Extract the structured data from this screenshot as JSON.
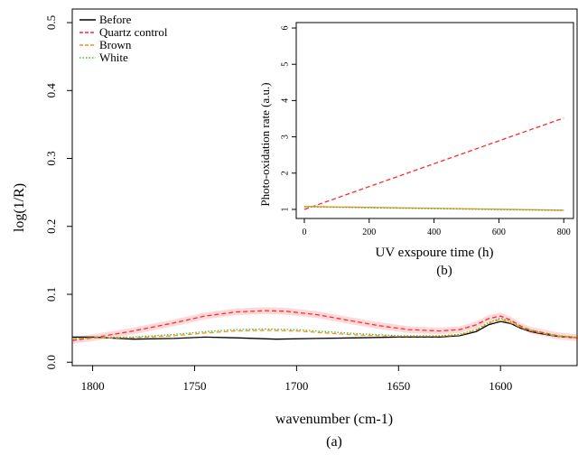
{
  "chart_data": [
    {
      "panel_label": "(a)",
      "type": "line",
      "xlabel": "wavenumber (cm-1)",
      "ylabel": "log(1/R)",
      "xlim": [
        1810,
        1562
      ],
      "ylim": [
        -0.005,
        0.52
      ],
      "x_reversed": true,
      "x_ticks": [
        1800,
        1750,
        1700,
        1650,
        1600
      ],
      "y_ticks": [
        0.0,
        0.1,
        0.2,
        0.3,
        0.4,
        0.5
      ],
      "y_tick_labels": [
        "0.0",
        "0.1",
        "0.2",
        "0.3",
        "0.4",
        "0.5"
      ],
      "grid": false,
      "legend_position": "top-left",
      "series": [
        {
          "name": "Before",
          "color": "#000000",
          "dash": "solid",
          "x": [
            1810,
            1800,
            1780,
            1760,
            1745,
            1730,
            1710,
            1690,
            1670,
            1650,
            1630,
            1620,
            1612,
            1606,
            1600,
            1595,
            1590,
            1585,
            1580,
            1572,
            1562
          ],
          "y": [
            0.037,
            0.037,
            0.034,
            0.035,
            0.037,
            0.036,
            0.034,
            0.035,
            0.036,
            0.037,
            0.037,
            0.039,
            0.045,
            0.055,
            0.06,
            0.057,
            0.05,
            0.045,
            0.042,
            0.038,
            0.036
          ]
        },
        {
          "name": "Quartz control",
          "color": "#ff2a2a",
          "dash": "dashed",
          "band": 0.005,
          "x": [
            1810,
            1800,
            1780,
            1760,
            1745,
            1730,
            1715,
            1705,
            1690,
            1675,
            1660,
            1645,
            1630,
            1620,
            1612,
            1606,
            1600,
            1595,
            1590,
            1585,
            1580,
            1572,
            1562
          ],
          "y": [
            0.032,
            0.036,
            0.046,
            0.058,
            0.068,
            0.074,
            0.076,
            0.075,
            0.07,
            0.062,
            0.054,
            0.048,
            0.046,
            0.048,
            0.055,
            0.064,
            0.068,
            0.062,
            0.053,
            0.047,
            0.044,
            0.039,
            0.036
          ]
        },
        {
          "name": "Brown",
          "color": "#ff8c1a",
          "dash": "dashed",
          "x": [
            1810,
            1800,
            1780,
            1760,
            1745,
            1730,
            1715,
            1700,
            1685,
            1670,
            1650,
            1630,
            1620,
            1612,
            1606,
            1600,
            1595,
            1590,
            1585,
            1580,
            1572,
            1562
          ],
          "y": [
            0.035,
            0.036,
            0.036,
            0.039,
            0.043,
            0.046,
            0.047,
            0.046,
            0.043,
            0.04,
            0.038,
            0.038,
            0.04,
            0.047,
            0.057,
            0.063,
            0.058,
            0.051,
            0.046,
            0.043,
            0.038,
            0.036
          ]
        },
        {
          "name": "White",
          "color": "#3fbf3f",
          "dash": "dotted",
          "x": [
            1810,
            1800,
            1780,
            1760,
            1745,
            1730,
            1715,
            1700,
            1685,
            1670,
            1650,
            1630,
            1620,
            1612,
            1606,
            1600,
            1595,
            1590,
            1585,
            1580,
            1572,
            1562
          ],
          "y": [
            0.035,
            0.036,
            0.037,
            0.041,
            0.045,
            0.048,
            0.049,
            0.048,
            0.045,
            0.042,
            0.039,
            0.039,
            0.041,
            0.048,
            0.058,
            0.065,
            0.06,
            0.052,
            0.047,
            0.044,
            0.039,
            0.037
          ]
        }
      ]
    },
    {
      "panel_label": "(b)",
      "type": "line",
      "xlabel": "UV exspoure time (h)",
      "ylabel": "Photo-oxidation rate (a.u.)",
      "xlim": [
        -25,
        830
      ],
      "ylim": [
        0.75,
        6.15
      ],
      "x_ticks": [
        0,
        200,
        400,
        600,
        800
      ],
      "y_ticks": [
        1,
        2,
        3,
        4,
        5,
        6
      ],
      "grid": false,
      "series": [
        {
          "name": "Quartz control",
          "color": "#ff2a2a",
          "dash": "dashed",
          "x": [
            0,
            800
          ],
          "y": [
            1.0,
            3.52
          ]
        },
        {
          "name": "Brown",
          "color": "#ff8c1a",
          "dash": "solid",
          "x": [
            0,
            800
          ],
          "y": [
            1.08,
            0.98
          ]
        },
        {
          "name": "White",
          "color": "#3fbf3f",
          "dash": "dotted",
          "x": [
            0,
            800
          ],
          "y": [
            1.07,
            0.97
          ]
        }
      ]
    }
  ]
}
